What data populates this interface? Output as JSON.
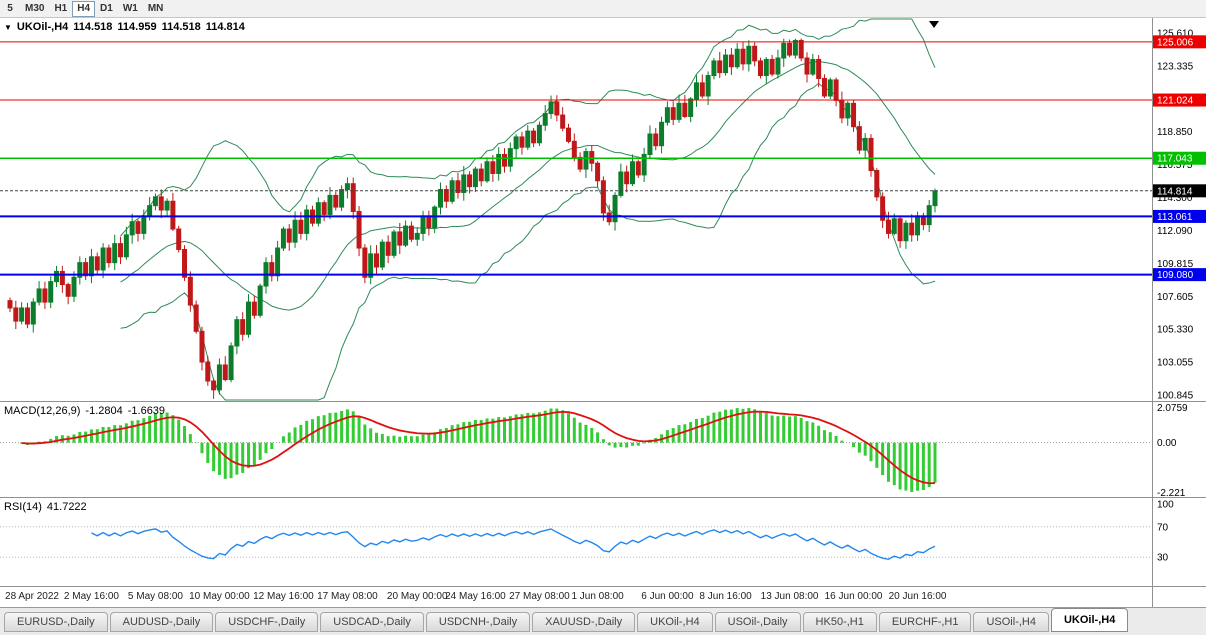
{
  "toolbar": {
    "timeframes": [
      {
        "label": "5",
        "active": false
      },
      {
        "label": "M30",
        "active": false
      },
      {
        "label": "H1",
        "active": false
      },
      {
        "label": "H4",
        "active": true
      },
      {
        "label": "D1",
        "active": false
      },
      {
        "label": "W1",
        "active": false
      },
      {
        "label": "MN",
        "active": false
      }
    ]
  },
  "chart": {
    "symbol_period": "UKOil-,H4",
    "open": "114.518",
    "high": "114.959",
    "low": "114.518",
    "close": "114.814"
  },
  "price_axis": {
    "top_value": 125.61,
    "bottom_value": 100.845,
    "labels": [
      "125.610",
      "123.335",
      "121.060",
      "118.850",
      "116.575",
      "114.300",
      "112.090",
      "109.815",
      "107.605",
      "105.330",
      "103.055",
      "100.845"
    ]
  },
  "levels": [
    {
      "price": 125.006,
      "label": "125.006",
      "color": "#ee0000",
      "width": 1
    },
    {
      "price": 121.024,
      "label": "121.024",
      "color": "#ee0000",
      "width": 1
    },
    {
      "price": 117.043,
      "label": "117.043",
      "color": "#00c000",
      "width": 1.5
    },
    {
      "price": 113.061,
      "label": "113.061",
      "color": "#0000ee",
      "width": 2
    },
    {
      "price": 109.08,
      "label": "109.080",
      "color": "#0000ee",
      "width": 2
    }
  ],
  "current_price": {
    "value": 114.814,
    "label": "114.814",
    "color": "#000000"
  },
  "colors": {
    "bull": "#0b7d2b",
    "bear": "#c01818",
    "bollinger": "#2e8b57",
    "macd_hist": "#33cc33",
    "macd_signal": "#e01010",
    "rsi_line": "#2288ee",
    "axis_text": "#000000",
    "time_text": "#222222",
    "separator": "#909090"
  },
  "chart_data": {
    "type": "candlestick",
    "symbol": "UKOil-,H4",
    "timeframe": "H4",
    "closes": [
      106.8,
      105.9,
      106.8,
      105.7,
      107.2,
      108.1,
      107.2,
      108.6,
      109.3,
      108.4,
      107.6,
      108.9,
      109.9,
      109.0,
      110.3,
      109.4,
      110.9,
      109.9,
      111.2,
      110.3,
      111.8,
      112.7,
      111.9,
      113.1,
      113.8,
      114.4,
      113.5,
      114.1,
      112.2,
      110.8,
      108.9,
      107.0,
      105.2,
      103.1,
      101.8,
      101.2,
      102.9,
      101.9,
      104.2,
      106.0,
      105.0,
      107.2,
      106.3,
      108.3,
      109.9,
      109.0,
      110.9,
      112.2,
      111.3,
      112.8,
      111.9,
      113.5,
      112.6,
      114.0,
      113.2,
      114.5,
      113.7,
      114.9,
      115.3,
      113.4,
      110.9,
      108.9,
      110.5,
      109.6,
      111.3,
      110.4,
      112.0,
      111.1,
      112.4,
      111.5,
      111.9,
      113.1,
      112.3,
      113.7,
      114.9,
      114.1,
      115.5,
      114.7,
      115.9,
      115.1,
      116.3,
      115.5,
      116.8,
      116.0,
      117.3,
      116.5,
      117.7,
      118.5,
      117.8,
      118.9,
      118.1,
      119.3,
      120.1,
      120.9,
      120.0,
      119.1,
      118.2,
      117.1,
      116.3,
      117.5,
      116.7,
      115.5,
      113.3,
      112.7,
      114.5,
      116.1,
      115.3,
      116.8,
      115.9,
      117.3,
      118.7,
      117.9,
      119.5,
      120.5,
      119.7,
      120.8,
      119.9,
      121.1,
      122.2,
      121.3,
      122.7,
      123.7,
      122.9,
      124.1,
      123.3,
      124.5,
      123.5,
      124.7,
      123.7,
      122.7,
      123.8,
      122.8,
      123.9,
      124.9,
      124.1,
      125.1,
      123.9,
      122.8,
      123.8,
      122.5,
      121.3,
      122.4,
      121.0,
      119.8,
      120.8,
      119.2,
      117.6,
      118.4,
      116.2,
      114.4,
      112.8,
      111.9,
      112.9,
      111.4,
      112.6,
      111.8,
      113.1,
      112.5,
      113.8,
      114.81
    ],
    "indicators": {
      "bollinger": {
        "period": 20,
        "deviation": 2
      },
      "macd": {
        "label": "MACD(12,26,9)",
        "value_main": "-1.2804",
        "value_signal": "-1.6639",
        "fast": 12,
        "slow": 26,
        "signal": 9,
        "scale_max": "2.0759",
        "scale_zero": "0.00",
        "scale_min": "-2.221"
      },
      "rsi": {
        "label": "RSI(14)",
        "value": "41.7222",
        "period": 14,
        "scale": [
          {
            "text": "100",
            "v": 100
          },
          {
            "text": "70",
            "v": 70
          },
          {
            "text": "30",
            "v": 30
          }
        ]
      }
    },
    "time_labels": [
      {
        "text": "28 Apr 2022",
        "bar": 3
      },
      {
        "text": "2 May 16:00",
        "bar": 14
      },
      {
        "text": "5 May 08:00",
        "bar": 25
      },
      {
        "text": "10 May 00:00",
        "bar": 36
      },
      {
        "text": "12 May 16:00",
        "bar": 47
      },
      {
        "text": "17 May 08:00",
        "bar": 58
      },
      {
        "text": "20 May 00:00",
        "bar": 70
      },
      {
        "text": "24 May 16:00",
        "bar": 80
      },
      {
        "text": "27 May 08:00",
        "bar": 91
      },
      {
        "text": "1 Jun 08:00",
        "bar": 101
      },
      {
        "text": "6 Jun 00:00",
        "bar": 113
      },
      {
        "text": "8 Jun 16:00",
        "bar": 123
      },
      {
        "text": "13 Jun 08:00",
        "bar": 134
      },
      {
        "text": "16 Jun 00:00",
        "bar": 145
      },
      {
        "text": "20 Jun 16:00",
        "bar": 156
      }
    ]
  },
  "tabs": {
    "items": [
      {
        "label": "EURUSD-,Daily",
        "active": false
      },
      {
        "label": "AUDUSD-,Daily",
        "active": false
      },
      {
        "label": "USDCHF-,Daily",
        "active": false
      },
      {
        "label": "USDCAD-,Daily",
        "active": false
      },
      {
        "label": "USDCNH-,Daily",
        "active": false
      },
      {
        "label": "XAUUSD-,Daily",
        "active": false
      },
      {
        "label": "UKOil-,H4",
        "active": false
      },
      {
        "label": "USOil-,Daily",
        "active": false
      },
      {
        "label": "HK50-,H1",
        "active": false
      },
      {
        "label": "EURCHF-,H1",
        "active": false
      },
      {
        "label": "USOil-,H4",
        "active": false
      },
      {
        "label": "UKOil-,H4",
        "active": true
      }
    ]
  }
}
